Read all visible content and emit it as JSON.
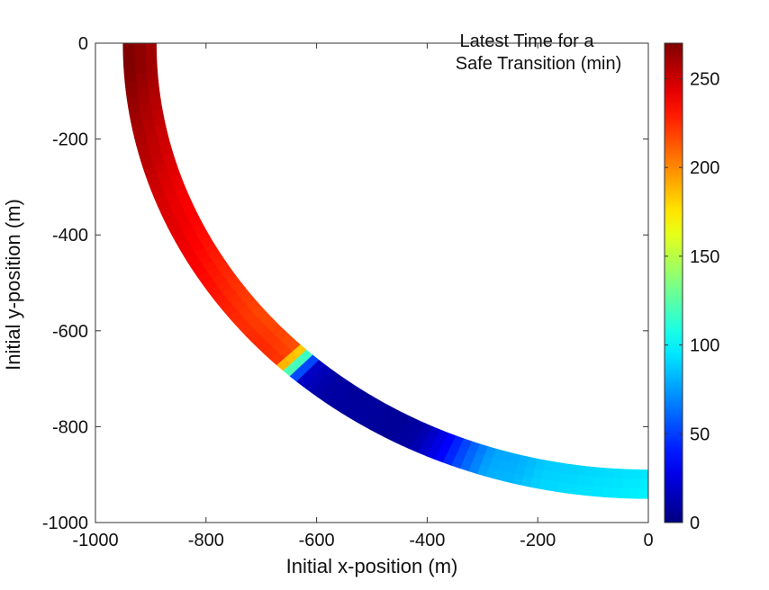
{
  "chart_data": {
    "type": "heatmap",
    "title": "",
    "xlabel": "Initial x-position (m)",
    "ylabel": "Initial y-position (m)",
    "xlim": [
      -1000,
      0
    ],
    "ylim": [
      -1000,
      0
    ],
    "x_ticks": [
      -1000,
      -800,
      -600,
      -400,
      -200,
      0
    ],
    "x_tick_labels": [
      "-1000",
      "-800",
      "-600",
      "-400",
      "-200",
      "0"
    ],
    "y_ticks": [
      0,
      -200,
      -400,
      -600,
      -800,
      -1000
    ],
    "y_tick_labels": [
      "0",
      "-200",
      "-400",
      "-600",
      "-800",
      "-1000"
    ],
    "grid": false,
    "colorbar": {
      "title_line1": "Latest Time for a",
      "title_line2": "Safe Transition (min)",
      "colormap": "jet",
      "range": [
        0,
        270
      ],
      "ticks": [
        0,
        50,
        100,
        150,
        200,
        250
      ],
      "tick_labels": [
        "0",
        "50",
        "100",
        "150",
        "200",
        "250"
      ]
    },
    "band": {
      "description_of_shape": "quarter-circle arc band",
      "center": [
        0,
        0
      ],
      "inner_radius": 890,
      "outer_radius": 950,
      "angle_range_deg": [
        180,
        270
      ]
    },
    "data_along_band": {
      "angle_deg": [
        180,
        183,
        186,
        189,
        192,
        195,
        198,
        201,
        204,
        207,
        210,
        213,
        216,
        219,
        222,
        225,
        228,
        231,
        234,
        237,
        240,
        243,
        246,
        249,
        252,
        255,
        258,
        261,
        264,
        267,
        270
      ],
      "value": [
        270,
        270,
        266,
        262,
        258,
        255,
        250,
        246,
        244,
        240,
        236,
        232,
        228,
        224,
        226,
        222,
        20,
        10,
        8,
        8,
        6,
        10,
        30,
        58,
        80,
        82,
        90,
        92,
        94,
        96,
        98
      ]
    }
  }
}
